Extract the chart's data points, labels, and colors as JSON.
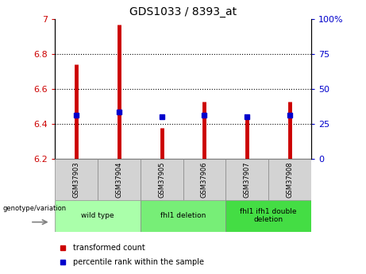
{
  "title": "GDS1033 / 8393_at",
  "samples": [
    "GSM37903",
    "GSM37904",
    "GSM37905",
    "GSM37906",
    "GSM37907",
    "GSM37908"
  ],
  "transformed_count": [
    6.74,
    6.97,
    6.38,
    6.53,
    6.44,
    6.53
  ],
  "percentile_rank": [
    6.45,
    6.47,
    6.44,
    6.45,
    6.44,
    6.45
  ],
  "ylim_left": [
    6.2,
    7.0
  ],
  "ylim_right": [
    0,
    100
  ],
  "yticks_left": [
    6.2,
    6.4,
    6.6,
    6.8,
    7.0
  ],
  "yticks_right": [
    0,
    25,
    50,
    75,
    100
  ],
  "ytick_left_labels": [
    "6.2",
    "6.4",
    "6.6",
    "6.8",
    "7"
  ],
  "ytick_right_labels": [
    "0",
    "25",
    "50",
    "75",
    "100%"
  ],
  "grid_yticks": [
    6.4,
    6.6,
    6.8
  ],
  "groups": [
    {
      "label": "wild type",
      "indices": [
        0,
        1
      ],
      "color": "#aaffaa"
    },
    {
      "label": "fhl1 deletion",
      "indices": [
        2,
        3
      ],
      "color": "#77ee77"
    },
    {
      "label": "fhl1 ifh1 double\ndeletion",
      "indices": [
        4,
        5
      ],
      "color": "#44dd44"
    }
  ],
  "bar_color": "#cc0000",
  "dot_color": "#0000cc",
  "left_tick_color": "#cc0000",
  "right_tick_color": "#0000cc",
  "bg_color": "#ffffff",
  "sample_bg": "#d3d3d3",
  "legend_red_label": "transformed count",
  "legend_blue_label": "percentile rank within the sample",
  "genotype_label": "genotype/variation"
}
